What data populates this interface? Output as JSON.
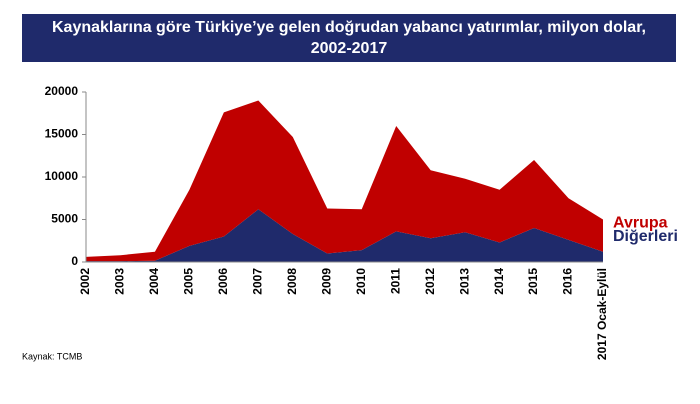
{
  "chart_data": {
    "type": "stacked_area",
    "title": "Kaynaklarına göre Türkiye’ye gelen doğrudan yabancı yatırımlar, milyon dolar, 2002-2017",
    "source": "Kaynak:  TCMB",
    "categories": [
      "2002",
      "2003",
      "2004",
      "2005",
      "2006",
      "2007",
      "2008",
      "2009",
      "2010",
      "2011",
      "2012",
      "2013",
      "2014",
      "2015",
      "2016",
      "2017 Ocak-Eylül"
    ],
    "series": [
      {
        "name": "Diğerleri",
        "color": "#1f2a6b",
        "values": [
          100,
          100,
          150,
          1900,
          3000,
          6200,
          3300,
          1000,
          1400,
          3600,
          2800,
          3500,
          2300,
          4000,
          2600,
          1200
        ]
      },
      {
        "name": "Avrupa",
        "color": "#c00000",
        "values": [
          500,
          700,
          1050,
          6600,
          14600,
          12800,
          11400,
          5300,
          4800,
          12400,
          8000,
          6300,
          6200,
          8000,
          4900,
          3800
        ]
      }
    ],
    "ylim": [
      0,
      20000
    ],
    "yticks": [
      0,
      5000,
      10000,
      15000,
      20000
    ],
    "grid": false
  }
}
